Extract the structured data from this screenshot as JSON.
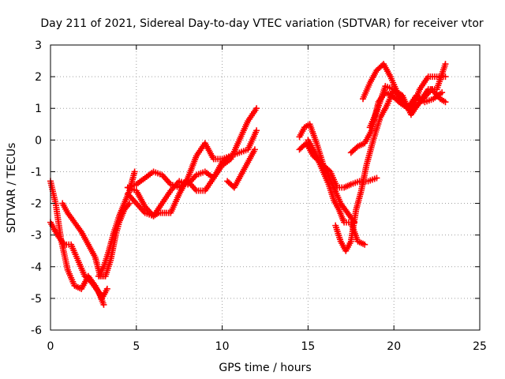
{
  "chart_data": {
    "type": "scatter",
    "title": "Day 211 of 2021, Sidereal Day-to-day VTEC variation (SDTVAR) for receiver vtor",
    "xlabel": "GPS time / hours",
    "ylabel": "SDTVAR / TECUs",
    "xlim": [
      0,
      25
    ],
    "ylim": [
      -6,
      3
    ],
    "x_ticks": [
      "0",
      "5",
      "10",
      "15",
      "20",
      "25"
    ],
    "y_ticks": [
      "-6",
      "-5",
      "-4",
      "-3",
      "-2",
      "-1",
      "0",
      "1",
      "2",
      "3"
    ],
    "grid": true,
    "marker": "plus",
    "color": "#ff0000",
    "series": [
      {
        "x": [
          0.0,
          0.3,
          0.6,
          1.0,
          1.4,
          1.8,
          2.2,
          2.6,
          3.0,
          3.3
        ],
        "y": [
          -1.3,
          -2.0,
          -3.1,
          -4.1,
          -4.6,
          -4.7,
          -4.3,
          -4.6,
          -5.0,
          -4.7
        ]
      },
      {
        "x": [
          0.0,
          0.4,
          0.8,
          1.2,
          1.6,
          2.0,
          2.4,
          2.8,
          3.1
        ],
        "y": [
          -2.6,
          -3.0,
          -3.3,
          -3.3,
          -3.8,
          -4.3,
          -4.5,
          -4.8,
          -5.2
        ]
      },
      {
        "x": [
          0.7,
          1.0,
          1.4,
          1.8,
          2.2,
          2.6,
          2.9,
          3.2,
          3.5,
          3.8,
          4.0,
          4.3,
          4.6
        ],
        "y": [
          -2.0,
          -2.3,
          -2.6,
          -2.9,
          -3.3,
          -3.7,
          -4.3,
          -4.3,
          -3.8,
          -3.0,
          -2.6,
          -2.2,
          -2.0
        ]
      },
      {
        "x": [
          2.8,
          3.1,
          3.4,
          3.7,
          4.0,
          4.3,
          4.6,
          4.9
        ],
        "y": [
          -4.3,
          -4.0,
          -3.5,
          -2.9,
          -2.4,
          -2.0,
          -1.6,
          -1.0
        ]
      },
      {
        "x": [
          4.5,
          5.0,
          5.5,
          6.0,
          6.5,
          7.0,
          7.5,
          8.0,
          8.5,
          9.0,
          9.5,
          10.0,
          10.5,
          11.0,
          11.5,
          12.0
        ],
        "y": [
          -1.5,
          -1.6,
          -2.1,
          -2.4,
          -2.0,
          -1.6,
          -1.3,
          -1.4,
          -1.1,
          -1.0,
          -1.2,
          -0.7,
          -0.5,
          -0.4,
          -0.3,
          0.3
        ]
      },
      {
        "x": [
          4.5,
          5.0,
          5.5,
          6.0,
          6.3,
          7.0,
          7.5,
          8.0,
          8.5,
          9.0,
          9.5,
          10.0,
          10.5
        ],
        "y": [
          -1.7,
          -2.0,
          -2.3,
          -2.4,
          -2.3,
          -2.3,
          -1.7,
          -1.2,
          -0.5,
          -0.1,
          -0.6,
          -0.6,
          -0.5
        ]
      },
      {
        "x": [
          4.5,
          5.0,
          5.5,
          6.0,
          6.5,
          7.0,
          7.5,
          8.0,
          8.5,
          9.0,
          9.5,
          10.0,
          10.5,
          11.0,
          11.5,
          12.0
        ],
        "y": [
          -1.5,
          -1.4,
          -1.2,
          -1.0,
          -1.1,
          -1.4,
          -1.5,
          -1.3,
          -1.6,
          -1.6,
          -1.2,
          -0.8,
          -0.6,
          0.0,
          0.6,
          1.0
        ]
      },
      {
        "x": [
          10.3,
          10.7,
          11.1,
          11.5,
          11.9
        ],
        "y": [
          -1.3,
          -1.5,
          -1.1,
          -0.7,
          -0.3
        ]
      },
      {
        "x": [
          14.5,
          14.8,
          15.1,
          15.5,
          15.9,
          16.3,
          16.7,
          17.1,
          17.5,
          18.0,
          18.5,
          19.0
        ],
        "y": [
          0.1,
          0.4,
          0.5,
          -0.1,
          -0.8,
          -1.0,
          -1.5,
          -1.5,
          -1.4,
          -1.3,
          -1.3,
          -1.2
        ]
      },
      {
        "x": [
          14.5,
          14.9,
          15.3,
          15.7,
          16.1,
          16.5,
          16.9,
          17.3,
          17.7
        ],
        "y": [
          -0.3,
          -0.1,
          -0.5,
          -0.7,
          -1.0,
          -1.5,
          -2.0,
          -2.3,
          -2.6
        ]
      },
      {
        "x": [
          15.0,
          15.4,
          15.8,
          16.2,
          16.5,
          16.8,
          17.1,
          17.5,
          17.9,
          18.3
        ],
        "y": [
          0.0,
          -0.4,
          -0.9,
          -1.4,
          -1.9,
          -2.2,
          -2.6,
          -2.6,
          -3.2,
          -3.3
        ]
      },
      {
        "x": [
          16.6,
          16.9,
          17.2,
          17.5,
          17.8,
          18.1,
          18.4,
          18.8,
          19.2,
          19.6,
          20.0,
          20.5,
          21.0,
          21.5,
          22.0,
          22.5,
          23.0
        ],
        "y": [
          -2.7,
          -3.2,
          -3.5,
          -3.2,
          -2.2,
          -1.6,
          -0.8,
          0.0,
          0.7,
          1.1,
          1.6,
          1.4,
          0.8,
          1.2,
          1.6,
          1.6,
          2.4
        ]
      },
      {
        "x": [
          17.5,
          17.9,
          18.3,
          18.7,
          19.1,
          19.5,
          19.9,
          20.3,
          20.8,
          21.3,
          21.8,
          22.3,
          22.8
        ],
        "y": [
          -0.4,
          -0.2,
          -0.1,
          0.3,
          1.2,
          1.5,
          1.4,
          1.2,
          1.0,
          1.4,
          1.2,
          1.3,
          1.5
        ]
      },
      {
        "x": [
          18.2,
          18.6,
          19.0,
          19.4,
          19.8,
          20.2,
          20.7,
          21.2,
          21.7,
          22.2,
          22.7,
          23.0
        ],
        "y": [
          1.3,
          1.8,
          2.2,
          2.4,
          2.0,
          1.5,
          1.1,
          1.0,
          1.3,
          1.6,
          1.3,
          1.2
        ]
      },
      {
        "x": [
          18.6,
          19.0,
          19.5,
          20.0,
          20.5,
          21.0,
          21.5,
          22.0,
          22.5,
          23.0
        ],
        "y": [
          0.4,
          0.9,
          1.7,
          1.6,
          1.2,
          0.9,
          1.6,
          2.0,
          2.0,
          2.0
        ]
      }
    ]
  }
}
